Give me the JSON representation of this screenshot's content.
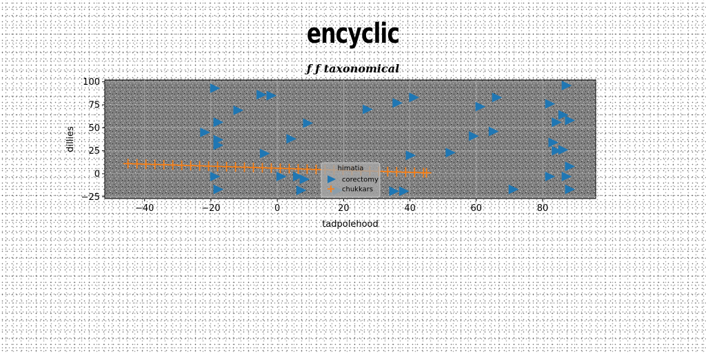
{
  "header": {
    "title": "encyclic",
    "subtitle": "ƒ ƒ taxonomical"
  },
  "chart_data": {
    "type": "scatter",
    "title": "ƒ ƒ taxonomical",
    "xlabel": "tadpolehood",
    "ylabel": "dillies",
    "xlim": [
      -52,
      96
    ],
    "ylim": [
      -27,
      102
    ],
    "xticks": [
      -40,
      -20,
      0,
      20,
      40,
      60,
      80
    ],
    "yticks": [
      -25,
      0,
      25,
      50,
      75,
      100
    ],
    "grid": true,
    "legend": {
      "title": "himatia",
      "position": "lower-center"
    },
    "series": [
      {
        "name": "corectomy",
        "marker": "triangle-right",
        "color": "#1f77b4",
        "points": [
          [
            -19,
            93
          ],
          [
            -5,
            86
          ],
          [
            -2,
            85
          ],
          [
            -12,
            69
          ],
          [
            -18,
            56
          ],
          [
            -22,
            45
          ],
          [
            -18,
            37
          ],
          [
            -18,
            31
          ],
          [
            -4,
            22
          ],
          [
            4,
            38
          ],
          [
            9,
            55
          ],
          [
            -19,
            -3
          ],
          [
            -18,
            -17
          ],
          [
            1,
            -3
          ],
          [
            6,
            -3
          ],
          [
            8,
            -6
          ],
          [
            7,
            -18
          ],
          [
            18,
            -18
          ],
          [
            27,
            70
          ],
          [
            36,
            77
          ],
          [
            41,
            83
          ],
          [
            40,
            20
          ],
          [
            52,
            23
          ],
          [
            35,
            -19
          ],
          [
            38,
            -19
          ],
          [
            59,
            41
          ],
          [
            61,
            73
          ],
          [
            65,
            46
          ],
          [
            66,
            83
          ],
          [
            71,
            -17
          ],
          [
            82,
            76
          ],
          [
            83,
            34
          ],
          [
            84,
            56
          ],
          [
            84,
            25
          ],
          [
            86,
            64
          ],
          [
            86,
            26
          ],
          [
            87,
            96
          ],
          [
            88,
            58
          ],
          [
            88,
            8
          ],
          [
            87,
            -3
          ],
          [
            88,
            -17
          ],
          [
            82,
            -3
          ]
        ]
      },
      {
        "name": "chukkars",
        "marker": "plus",
        "color": "#ff7f0e",
        "points": [
          [
            -45.0,
            11.0
          ],
          [
            -42.3,
            10.7
          ],
          [
            -39.6,
            10.4
          ],
          [
            -36.9,
            10.1
          ],
          [
            -34.2,
            9.8
          ],
          [
            -31.5,
            9.5
          ],
          [
            -28.8,
            9.2
          ],
          [
            -26.1,
            8.9
          ],
          [
            -23.4,
            8.6
          ],
          [
            -20.7,
            8.3
          ],
          [
            -18.0,
            8.0
          ],
          [
            -15.3,
            7.7
          ],
          [
            -12.6,
            7.4
          ],
          [
            -9.9,
            7.1
          ],
          [
            -7.2,
            6.8
          ],
          [
            -4.5,
            6.5
          ],
          [
            -1.8,
            6.2
          ],
          [
            0.9,
            5.9
          ],
          [
            3.6,
            5.6
          ],
          [
            6.3,
            5.3
          ],
          [
            9.0,
            5.0
          ],
          [
            11.7,
            4.7
          ],
          [
            14.4,
            4.4
          ],
          [
            17.1,
            4.1
          ],
          [
            19.8,
            3.8
          ],
          [
            22.5,
            3.5
          ],
          [
            25.2,
            3.2
          ],
          [
            27.9,
            2.9
          ],
          [
            30.6,
            2.6
          ],
          [
            33.3,
            2.3
          ],
          [
            36.0,
            2.0
          ],
          [
            38.7,
            1.7
          ],
          [
            41.4,
            1.4
          ],
          [
            44.1,
            1.1
          ],
          [
            45.0,
            1.0
          ]
        ]
      }
    ]
  }
}
